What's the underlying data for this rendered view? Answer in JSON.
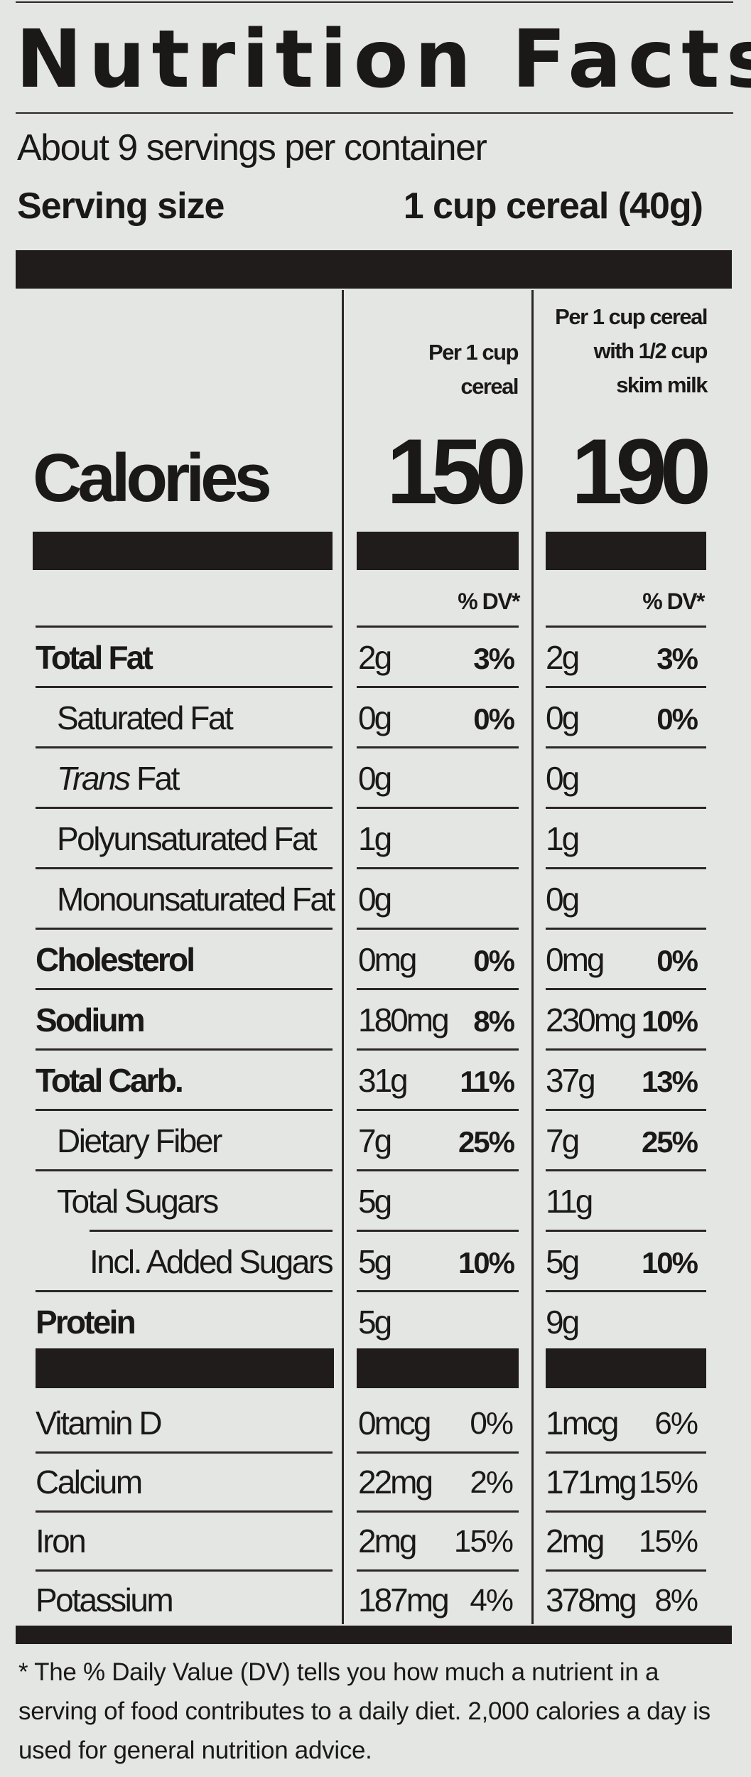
{
  "title": "Nutrition Facts",
  "servings_per_container": "About 9 servings per container",
  "serving_size": {
    "label": "Serving size",
    "value": "1 cup cereal (40g)"
  },
  "columns": [
    {
      "header": [
        "Per 1 cup",
        "cereal"
      ],
      "calories": "150",
      "dv_header": "% DV*"
    },
    {
      "header": [
        "Per 1 cup cereal",
        "with 1/2 cup",
        "skim milk"
      ],
      "calories": "190",
      "dv_header": "% DV*"
    }
  ],
  "calories_label": "Calories",
  "nutrients": [
    {
      "label": "Total Fat",
      "bold": true,
      "indent": 0,
      "col1": {
        "amount": "2g",
        "dv": "3%"
      },
      "col2": {
        "amount": "2g",
        "dv": "3%"
      }
    },
    {
      "label": "Saturated Fat",
      "bold": false,
      "indent": 1,
      "col1": {
        "amount": "0g",
        "dv": "0%"
      },
      "col2": {
        "amount": "0g",
        "dv": "0%"
      }
    },
    {
      "label_italic": "Trans",
      "label": " Fat",
      "bold": false,
      "indent": 1,
      "col1": {
        "amount": "0g",
        "dv": ""
      },
      "col2": {
        "amount": "0g",
        "dv": ""
      }
    },
    {
      "label": "Polyunsaturated Fat",
      "bold": false,
      "indent": 1,
      "col1": {
        "amount": "1g",
        "dv": ""
      },
      "col2": {
        "amount": "1g",
        "dv": ""
      }
    },
    {
      "label": "Monounsaturated Fat",
      "bold": false,
      "indent": 1,
      "col1": {
        "amount": "0g",
        "dv": ""
      },
      "col2": {
        "amount": "0g",
        "dv": ""
      }
    },
    {
      "label": "Cholesterol",
      "bold": true,
      "indent": 0,
      "col1": {
        "amount": "0mg",
        "dv": "0%"
      },
      "col2": {
        "amount": "0mg",
        "dv": "0%"
      }
    },
    {
      "label": "Sodium",
      "bold": true,
      "indent": 0,
      "col1": {
        "amount": "180mg",
        "dv": "8%"
      },
      "col2": {
        "amount": "230mg",
        "dv": "10%"
      }
    },
    {
      "label": "Total Carb.",
      "bold": true,
      "indent": 0,
      "col1": {
        "amount": "31g",
        "dv": "11%"
      },
      "col2": {
        "amount": "37g",
        "dv": "13%"
      }
    },
    {
      "label": "Dietary Fiber",
      "bold": false,
      "indent": 1,
      "col1": {
        "amount": "7g",
        "dv": "25%"
      },
      "col2": {
        "amount": "7g",
        "dv": "25%"
      }
    },
    {
      "label": "Total Sugars",
      "bold": false,
      "indent": 1,
      "col1": {
        "amount": "5g",
        "dv": ""
      },
      "col2": {
        "amount": "11g",
        "dv": ""
      }
    },
    {
      "label": "Incl. Added Sugars",
      "bold": false,
      "indent": 2,
      "col1": {
        "amount": "5g",
        "dv": "10%"
      },
      "col2": {
        "amount": "5g",
        "dv": "10%"
      }
    },
    {
      "label": "Protein",
      "bold": true,
      "indent": 0,
      "col1": {
        "amount": "5g",
        "dv": ""
      },
      "col2": {
        "amount": "9g",
        "dv": ""
      }
    }
  ],
  "vitamins": [
    {
      "label": "Vitamin D",
      "col1": {
        "amount": "0mcg",
        "dv": "0%"
      },
      "col2": {
        "amount": "1mcg",
        "dv": "6%"
      }
    },
    {
      "label": "Calcium",
      "col1": {
        "amount": "22mg",
        "dv": "2%"
      },
      "col2": {
        "amount": "171mg",
        "dv": "15%"
      }
    },
    {
      "label": "Iron",
      "col1": {
        "amount": "2mg",
        "dv": "15%"
      },
      "col2": {
        "amount": "2mg",
        "dv": "15%"
      }
    },
    {
      "label": "Potassium",
      "col1": {
        "amount": "187mg",
        "dv": "4%"
      },
      "col2": {
        "amount": "378mg",
        "dv": "8%"
      }
    }
  ],
  "footnote": "* The % Daily Value (DV) tells you how much a nutrient in a serving of food contributes to a daily diet. 2,000 calories a day is used for general nutrition advice.",
  "colors": {
    "background": "#e4e6e3",
    "ink": "#1f1c1b"
  }
}
